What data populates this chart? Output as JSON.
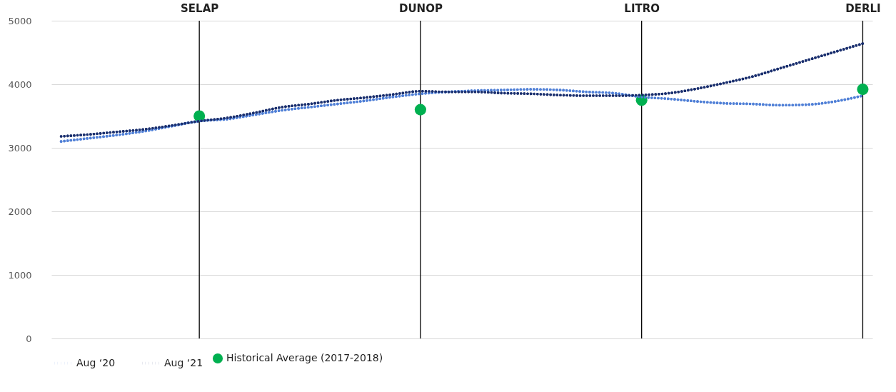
{
  "chart_data": {
    "type": "line",
    "categories": [
      null,
      null,
      null,
      null,
      null,
      "SELAP",
      null,
      null,
      null,
      null,
      null,
      null,
      null,
      "DUNOP",
      null,
      null,
      null,
      null,
      null,
      null,
      null,
      "LITRO",
      null,
      null,
      null,
      null,
      null,
      null,
      null,
      "DERLI"
    ],
    "series": [
      {
        "name": "Aug ‘20",
        "color": "#4f7fd6",
        "values": [
          3100,
          3150,
          3200,
          3260,
          3340,
          3420,
          3450,
          3520,
          3590,
          3640,
          3690,
          3740,
          3800,
          3850,
          3880,
          3900,
          3910,
          3920,
          3910,
          3880,
          3860,
          3800,
          3770,
          3730,
          3700,
          3690,
          3670,
          3680,
          3730,
          3820
        ]
      },
      {
        "name": "Aug ‘21",
        "color": "#1a2f6e",
        "values": [
          3180,
          3210,
          3250,
          3290,
          3350,
          3420,
          3470,
          3550,
          3640,
          3690,
          3750,
          3790,
          3840,
          3890,
          3880,
          3880,
          3860,
          3850,
          3830,
          3820,
          3820,
          3830,
          3860,
          3930,
          4020,
          4120,
          4250,
          4380,
          4510,
          4640
        ]
      },
      {
        "name": "Historical Average (2017-2018)",
        "type": "scatter",
        "color": "#00b050",
        "x": [
          "SELAP",
          "DUNOP",
          "LITRO",
          "DERLI"
        ],
        "values": [
          3500,
          3600,
          3750,
          3920
        ]
      }
    ],
    "ref_lines": [
      {
        "axis": "x",
        "value": "SELAP",
        "color": "#000000"
      },
      {
        "axis": "x",
        "value": "DUNOP",
        "color": "#000000"
      },
      {
        "axis": "x",
        "value": "LITRO",
        "color": "#000000"
      },
      {
        "axis": "x",
        "value": "DERLI",
        "color": "#000000"
      }
    ],
    "ylim": [
      0,
      5000
    ],
    "yticks": [
      0,
      1000,
      2000,
      3000,
      4000,
      5000
    ],
    "grid": "y",
    "legend": "bottom",
    "line_style": "dotted"
  }
}
